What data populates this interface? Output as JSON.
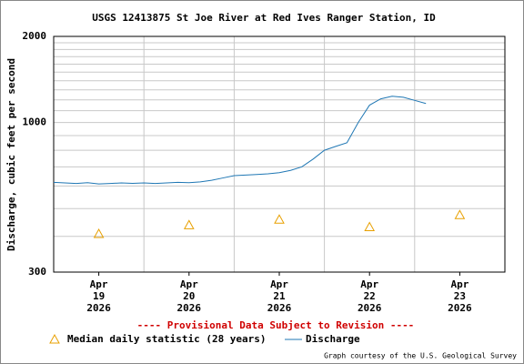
{
  "chart_data": {
    "type": "line",
    "title": "USGS 12413875 St Joe River at Red Ives Ranger Station, ID",
    "ylabel": "Discharge, cubic feet per second",
    "note": "---- Provisional Data Subject to Revision ----",
    "credit": "Graph courtesy of the U.S. Geological Survey",
    "log_y": true,
    "ylim": [
      300,
      2000
    ],
    "yticks": [
      300,
      1000,
      2000
    ],
    "ygrid": [
      400,
      500,
      600,
      700,
      800,
      900,
      1100,
      1200,
      1300,
      1400,
      1500,
      1600,
      1700,
      1800,
      1900
    ],
    "xlim": [
      "2026-04-19T00:00",
      "2026-04-24T00:00"
    ],
    "xgrid": [
      "2026-04-20T00:00",
      "2026-04-21T00:00",
      "2026-04-22T00:00",
      "2026-04-23T00:00"
    ],
    "xticks": [
      {
        "value": "2026-04-19T12:00",
        "label": [
          "Apr",
          "19",
          "2026"
        ]
      },
      {
        "value": "2026-04-20T12:00",
        "label": [
          "Apr",
          "20",
          "2026"
        ]
      },
      {
        "value": "2026-04-21T12:00",
        "label": [
          "Apr",
          "21",
          "2026"
        ]
      },
      {
        "value": "2026-04-22T12:00",
        "label": [
          "Apr",
          "22",
          "2026"
        ]
      },
      {
        "value": "2026-04-23T12:00",
        "label": [
          "Apr",
          "23",
          "2026"
        ]
      }
    ],
    "series": [
      {
        "name": "Median daily statistic (28 years)",
        "type": "scatter",
        "color": "#e8a000",
        "x": [
          "2026-04-19T12:00",
          "2026-04-20T12:00",
          "2026-04-21T12:00",
          "2026-04-22T12:00",
          "2026-04-23T12:00"
        ],
        "values": [
          408,
          438,
          458,
          431,
          475
        ]
      },
      {
        "name": "Discharge",
        "type": "line",
        "color": "#1f77b4",
        "x": [
          "2026-04-19T00:00",
          "2026-04-19T03:00",
          "2026-04-19T06:00",
          "2026-04-19T09:00",
          "2026-04-19T12:00",
          "2026-04-19T15:00",
          "2026-04-19T18:00",
          "2026-04-19T21:00",
          "2026-04-20T00:00",
          "2026-04-20T03:00",
          "2026-04-20T06:00",
          "2026-04-20T09:00",
          "2026-04-20T12:00",
          "2026-04-20T15:00",
          "2026-04-20T18:00",
          "2026-04-20T21:00",
          "2026-04-21T00:00",
          "2026-04-21T03:00",
          "2026-04-21T06:00",
          "2026-04-21T09:00",
          "2026-04-21T12:00",
          "2026-04-21T15:00",
          "2026-04-21T18:00",
          "2026-04-21T21:00",
          "2026-04-22T00:00",
          "2026-04-22T03:00",
          "2026-04-22T06:00",
          "2026-04-22T09:00",
          "2026-04-22T12:00",
          "2026-04-22T15:00",
          "2026-04-22T18:00",
          "2026-04-22T21:00",
          "2026-04-23T00:00",
          "2026-04-23T03:00"
        ],
        "values": [
          618,
          615,
          612,
          616,
          610,
          612,
          615,
          613,
          615,
          612,
          615,
          618,
          616,
          620,
          628,
          640,
          652,
          655,
          658,
          662,
          668,
          680,
          700,
          745,
          800,
          825,
          850,
          1000,
          1150,
          1210,
          1235,
          1225,
          1195,
          1165
        ]
      }
    ]
  }
}
